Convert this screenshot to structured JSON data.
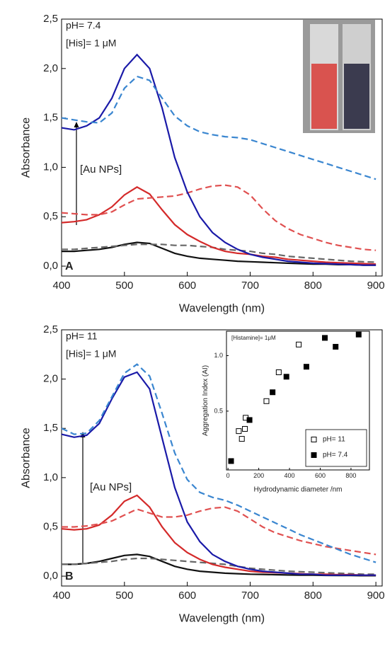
{
  "chart_data": [
    {
      "type": "line",
      "panel": "A",
      "xlabel": "Wavelength (nm)",
      "ylabel": "Absorbance",
      "annotations": [
        "pH= 7.4",
        "[His]= 1 μM",
        "[Au NPs]",
        "A"
      ],
      "x": [
        400,
        420,
        440,
        460,
        480,
        500,
        520,
        540,
        560,
        580,
        600,
        620,
        640,
        660,
        680,
        700,
        720,
        740,
        760,
        780,
        800,
        820,
        840,
        860,
        880,
        900
      ],
      "xlim": [
        400,
        910
      ],
      "ylim": [
        -0.1,
        2.5
      ],
      "xticks": [
        400,
        500,
        600,
        700,
        800,
        900
      ],
      "yticks": [
        {
          "value": 0,
          "label": "0,0"
        },
        {
          "value": 0.5,
          "label": "0,5"
        },
        {
          "value": 1,
          "label": "1,0"
        },
        {
          "value": 1.5,
          "label": "1,5"
        },
        {
          "value": 2,
          "label": "2,0"
        },
        {
          "value": 2.5,
          "label": "2,5"
        }
      ],
      "series": [
        {
          "color": "#111111",
          "dash": false,
          "values": [
            0.15,
            0.15,
            0.16,
            0.17,
            0.19,
            0.22,
            0.24,
            0.23,
            0.18,
            0.13,
            0.1,
            0.08,
            0.07,
            0.06,
            0.05,
            0.045,
            0.04,
            0.035,
            0.03,
            0.025,
            0.02,
            0.02,
            0.015,
            0.015,
            0.01,
            0.01
          ]
        },
        {
          "color": "#666666",
          "dash": true,
          "values": [
            0.17,
            0.17,
            0.18,
            0.19,
            0.2,
            0.21,
            0.22,
            0.22,
            0.22,
            0.21,
            0.21,
            0.2,
            0.19,
            0.17,
            0.16,
            0.15,
            0.13,
            0.12,
            0.1,
            0.09,
            0.08,
            0.07,
            0.06,
            0.05,
            0.045,
            0.04
          ]
        },
        {
          "color": "#d42a2a",
          "dash": false,
          "values": [
            0.44,
            0.45,
            0.47,
            0.52,
            0.6,
            0.72,
            0.8,
            0.73,
            0.57,
            0.42,
            0.32,
            0.25,
            0.19,
            0.15,
            0.13,
            0.12,
            0.1,
            0.09,
            0.07,
            0.06,
            0.05,
            0.04,
            0.035,
            0.03,
            0.025,
            0.02
          ]
        },
        {
          "color": "#e05050",
          "dash": true,
          "values": [
            0.54,
            0.53,
            0.52,
            0.52,
            0.55,
            0.62,
            0.68,
            0.69,
            0.7,
            0.71,
            0.74,
            0.78,
            0.81,
            0.82,
            0.8,
            0.72,
            0.58,
            0.46,
            0.38,
            0.32,
            0.28,
            0.24,
            0.21,
            0.19,
            0.17,
            0.16
          ]
        },
        {
          "color": "#1a1aa8",
          "dash": false,
          "values": [
            1.4,
            1.38,
            1.42,
            1.5,
            1.7,
            2.0,
            2.14,
            2.0,
            1.6,
            1.1,
            0.75,
            0.5,
            0.34,
            0.24,
            0.17,
            0.12,
            0.09,
            0.07,
            0.05,
            0.04,
            0.03,
            0.025,
            0.02,
            0.015,
            0.01,
            0.01
          ]
        },
        {
          "color": "#3a86d0",
          "dash": true,
          "values": [
            1.5,
            1.48,
            1.46,
            1.45,
            1.55,
            1.8,
            1.92,
            1.88,
            1.7,
            1.52,
            1.42,
            1.36,
            1.33,
            1.31,
            1.3,
            1.28,
            1.24,
            1.2,
            1.16,
            1.12,
            1.08,
            1.04,
            1.0,
            0.96,
            0.92,
            0.88
          ]
        }
      ]
    },
    {
      "type": "line",
      "panel": "B",
      "xlabel": "Wavelength (nm)",
      "ylabel": "Absorbance",
      "annotations": [
        "pH= 11",
        "[His]= 1 μM",
        "[Au NPs]",
        "B"
      ],
      "x": [
        400,
        420,
        440,
        460,
        480,
        500,
        520,
        540,
        560,
        580,
        600,
        620,
        640,
        660,
        680,
        700,
        720,
        740,
        760,
        780,
        800,
        820,
        840,
        860,
        880,
        900
      ],
      "xlim": [
        400,
        910
      ],
      "ylim": [
        -0.1,
        2.5
      ],
      "xticks": [
        400,
        500,
        600,
        700,
        800,
        900
      ],
      "yticks": [
        {
          "value": 0,
          "label": "0,0"
        },
        {
          "value": 0.5,
          "label": "0,5"
        },
        {
          "value": 1,
          "label": "1,0"
        },
        {
          "value": 1.5,
          "label": "1,5"
        },
        {
          "value": 2,
          "label": "2,0"
        },
        {
          "value": 2.5,
          "label": "2,5"
        }
      ],
      "series": [
        {
          "color": "#111111",
          "dash": false,
          "values": [
            0.12,
            0.12,
            0.13,
            0.15,
            0.18,
            0.21,
            0.22,
            0.2,
            0.15,
            0.1,
            0.07,
            0.05,
            0.04,
            0.03,
            0.025,
            0.02,
            0.018,
            0.015,
            0.012,
            0.01,
            0.01,
            0.008,
            0.007,
            0.006,
            0.005,
            0.005
          ]
        },
        {
          "color": "#666666",
          "dash": true,
          "values": [
            0.12,
            0.12,
            0.13,
            0.14,
            0.15,
            0.17,
            0.18,
            0.18,
            0.17,
            0.16,
            0.15,
            0.14,
            0.13,
            0.12,
            0.1,
            0.08,
            0.07,
            0.06,
            0.05,
            0.045,
            0.04,
            0.035,
            0.03,
            0.025,
            0.02,
            0.02
          ]
        },
        {
          "color": "#d42a2a",
          "dash": false,
          "values": [
            0.48,
            0.47,
            0.48,
            0.52,
            0.62,
            0.76,
            0.82,
            0.7,
            0.5,
            0.34,
            0.24,
            0.17,
            0.12,
            0.09,
            0.07,
            0.05,
            0.04,
            0.035,
            0.03,
            0.025,
            0.02,
            0.02,
            0.015,
            0.015,
            0.01,
            0.01
          ]
        },
        {
          "color": "#e05050",
          "dash": true,
          "values": [
            0.5,
            0.5,
            0.51,
            0.53,
            0.56,
            0.62,
            0.68,
            0.64,
            0.6,
            0.6,
            0.62,
            0.66,
            0.69,
            0.7,
            0.66,
            0.58,
            0.5,
            0.44,
            0.4,
            0.36,
            0.33,
            0.3,
            0.28,
            0.26,
            0.24,
            0.22
          ]
        },
        {
          "color": "#1a1aa8",
          "dash": false,
          "values": [
            1.44,
            1.41,
            1.43,
            1.55,
            1.8,
            2.02,
            2.07,
            1.9,
            1.4,
            0.9,
            0.55,
            0.35,
            0.22,
            0.15,
            0.1,
            0.07,
            0.05,
            0.04,
            0.03,
            0.02,
            0.02,
            0.01,
            0.01,
            0.01,
            0.01,
            0.01
          ]
        },
        {
          "color": "#3a86d0",
          "dash": true,
          "values": [
            1.5,
            1.44,
            1.45,
            1.58,
            1.82,
            2.06,
            2.15,
            2.03,
            1.65,
            1.25,
            0.98,
            0.85,
            0.8,
            0.77,
            0.72,
            0.66,
            0.6,
            0.54,
            0.48,
            0.42,
            0.37,
            0.32,
            0.27,
            0.22,
            0.18,
            0.14
          ]
        }
      ]
    },
    {
      "type": "scatter",
      "xlabel": "Hydrodynamic diameter /nm",
      "ylabel": "Aggregation Index (AI)",
      "annotations": [
        "[Histamine]= 1μM"
      ],
      "xlim": [
        -10,
        920
      ],
      "ylim": [
        -0.03,
        1.22
      ],
      "xticks": [
        0,
        200,
        400,
        600,
        800
      ],
      "yticks": [
        0.5,
        {
          "value": 1,
          "label": "1.0"
        }
      ],
      "series": [
        {
          "name": "pH= 11",
          "marker": "open",
          "color": "#000000",
          "x": [
            70,
            90,
            110,
            115,
            250,
            330,
            460
          ],
          "values": [
            0.32,
            0.25,
            0.34,
            0.44,
            0.59,
            0.85,
            1.1
          ]
        },
        {
          "name": "pH= 7.4",
          "marker": "filled",
          "color": "#000000",
          "x": [
            20,
            140,
            290,
            380,
            510,
            630,
            700,
            850
          ],
          "values": [
            0.05,
            0.42,
            0.67,
            0.81,
            0.9,
            1.16,
            1.08,
            1.19
          ]
        }
      ]
    }
  ]
}
